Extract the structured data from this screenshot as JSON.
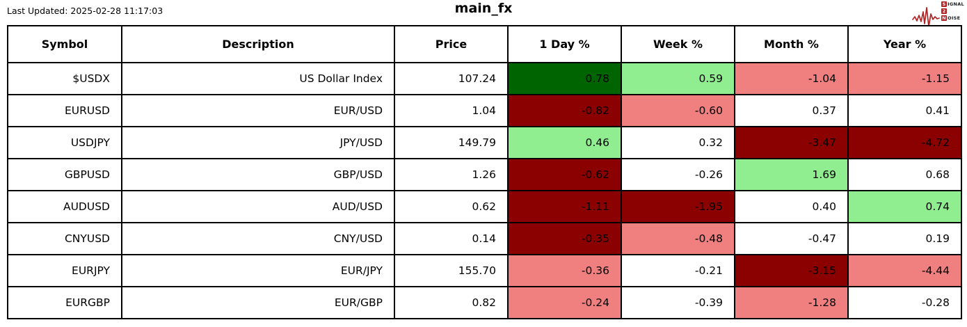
{
  "page": {
    "last_updated": "Last Updated: 2025-02-28 11:17:03"
  },
  "logo": {
    "name": "signal-2-noise",
    "brand_color": "#b22222",
    "line1_boxed": "S",
    "line1_rest": "IGNAL",
    "line2_boxed": "2",
    "line3_boxed": "N",
    "line3_rest": "OISE"
  },
  "colors": {
    "strong_up": "#006400",
    "up": "#90ee90",
    "down": "#f08080",
    "strong_down": "#8b0000",
    "neutral": "#ffffff"
  },
  "chart_data": {
    "type": "table",
    "title": "main_fx",
    "columns": [
      "Symbol",
      "Description",
      "Price",
      "1 Day %",
      "Week %",
      "Month %",
      "Year %"
    ],
    "rows": [
      {
        "symbol": "$USDX",
        "description": "US Dollar Index",
        "price": "107.24",
        "changes": [
          {
            "value": "0.78",
            "tone": "strong_up"
          },
          {
            "value": "0.59",
            "tone": "up"
          },
          {
            "value": "-1.04",
            "tone": "down"
          },
          {
            "value": "-1.15",
            "tone": "down"
          }
        ]
      },
      {
        "symbol": "EURUSD",
        "description": "EUR/USD",
        "price": "1.04",
        "changes": [
          {
            "value": "-0.82",
            "tone": "strong_down"
          },
          {
            "value": "-0.60",
            "tone": "down"
          },
          {
            "value": "0.37",
            "tone": "neutral"
          },
          {
            "value": "0.41",
            "tone": "neutral"
          }
        ]
      },
      {
        "symbol": "USDJPY",
        "description": "JPY/USD",
        "price": "149.79",
        "changes": [
          {
            "value": "0.46",
            "tone": "up"
          },
          {
            "value": "0.32",
            "tone": "neutral"
          },
          {
            "value": "-3.47",
            "tone": "strong_down"
          },
          {
            "value": "-4.72",
            "tone": "strong_down"
          }
        ]
      },
      {
        "symbol": "GBPUSD",
        "description": "GBP/USD",
        "price": "1.26",
        "changes": [
          {
            "value": "-0.62",
            "tone": "strong_down"
          },
          {
            "value": "-0.26",
            "tone": "neutral"
          },
          {
            "value": "1.69",
            "tone": "up"
          },
          {
            "value": "0.68",
            "tone": "neutral"
          }
        ]
      },
      {
        "symbol": "AUDUSD",
        "description": "AUD/USD",
        "price": "0.62",
        "changes": [
          {
            "value": "-1.11",
            "tone": "strong_down"
          },
          {
            "value": "-1.95",
            "tone": "strong_down"
          },
          {
            "value": "0.40",
            "tone": "neutral"
          },
          {
            "value": "0.74",
            "tone": "up"
          }
        ]
      },
      {
        "symbol": "CNYUSD",
        "description": "CNY/USD",
        "price": "0.14",
        "changes": [
          {
            "value": "-0.35",
            "tone": "strong_down"
          },
          {
            "value": "-0.48",
            "tone": "down"
          },
          {
            "value": "-0.47",
            "tone": "neutral"
          },
          {
            "value": "0.19",
            "tone": "neutral"
          }
        ]
      },
      {
        "symbol": "EURJPY",
        "description": "EUR/JPY",
        "price": "155.70",
        "changes": [
          {
            "value": "-0.36",
            "tone": "down"
          },
          {
            "value": "-0.21",
            "tone": "neutral"
          },
          {
            "value": "-3.15",
            "tone": "strong_down"
          },
          {
            "value": "-4.44",
            "tone": "down"
          }
        ]
      },
      {
        "symbol": "EURGBP",
        "description": "EUR/GBP",
        "price": "0.82",
        "changes": [
          {
            "value": "-0.24",
            "tone": "down"
          },
          {
            "value": "-0.39",
            "tone": "neutral"
          },
          {
            "value": "-1.28",
            "tone": "down"
          },
          {
            "value": "-0.28",
            "tone": "neutral"
          }
        ]
      }
    ]
  }
}
